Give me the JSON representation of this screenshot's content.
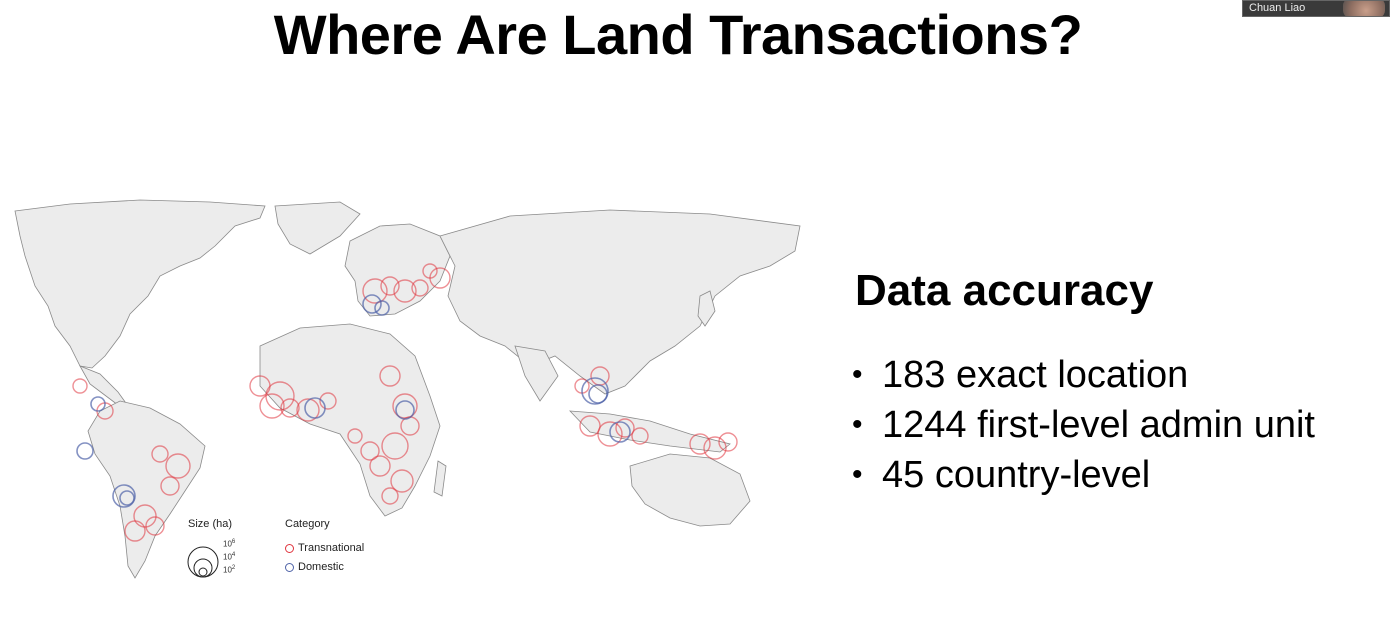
{
  "slide": {
    "title": "Where Are Land Transactions?",
    "info_heading": "Data accuracy",
    "bullets": [
      "183 exact location",
      "1244 first-level admin unit",
      "45 country-level"
    ],
    "bullet_glyph": "•"
  },
  "map": {
    "legend": {
      "size_title": "Size (ha)",
      "size_ticks": [
        "10",
        "10",
        "10"
      ],
      "size_exponents": [
        "6",
        "4",
        "2"
      ],
      "category_title": "Category",
      "categories": [
        {
          "label": "Transnational",
          "color": "#e0343e"
        },
        {
          "label": "Domestic",
          "color": "#4f63a8"
        }
      ]
    },
    "colors": {
      "land": "#ececec",
      "border": "#8a8a8a",
      "transnational": "#e0343e",
      "domestic": "#4f63a8"
    }
  },
  "video": {
    "participant_name": "Chuan Liao"
  }
}
